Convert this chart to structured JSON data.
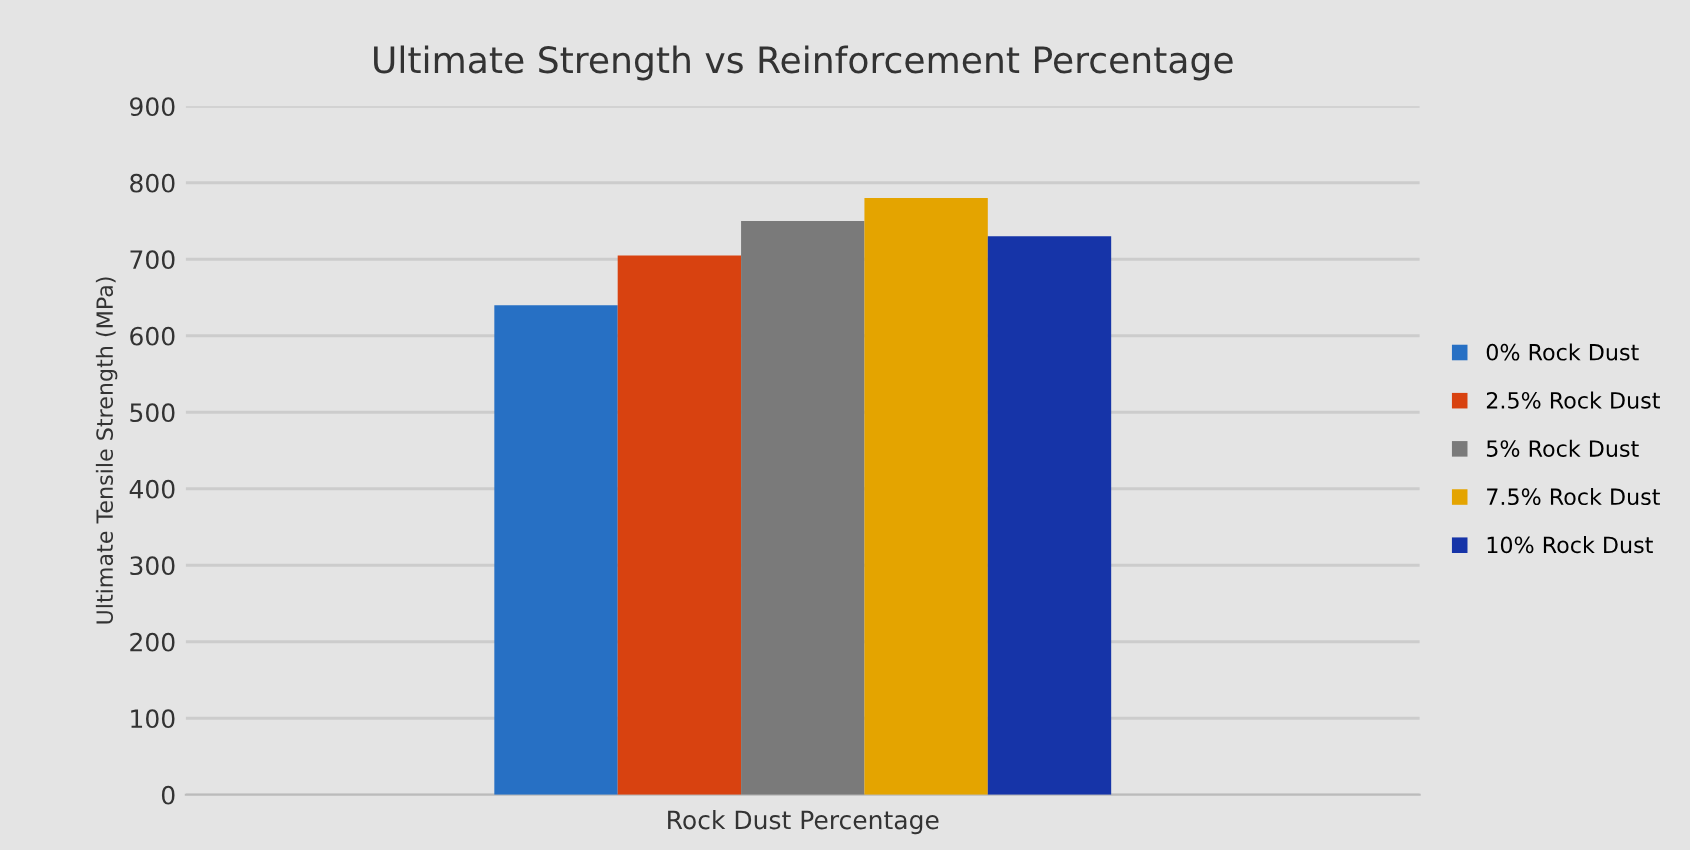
{
  "chart_data": {
    "type": "bar",
    "title": "Ultimate Strength vs Reinforcement Percentage",
    "xlabel": "Rock Dust Percentage",
    "ylabel": "Ultimate Tensile Strength (MPa)",
    "categories": [
      null
    ],
    "series": [
      {
        "name": "0% Rock Dust",
        "color": "#2770c4",
        "values": [
          640
        ]
      },
      {
        "name": "2.5% Rock Dust",
        "color": "#d84210",
        "values": [
          705
        ]
      },
      {
        "name": "5% Rock Dust",
        "color": "#7a7a7a",
        "values": [
          750
        ]
      },
      {
        "name": "7.5% Rock Dust",
        "color": "#e4a400",
        "values": [
          780
        ]
      },
      {
        "name": "10% Rock Dust",
        "color": "#1634a8",
        "values": [
          730
        ]
      }
    ],
    "ylim": [
      0,
      900
    ],
    "yticks": [
      0,
      100,
      200,
      300,
      400,
      500,
      600,
      700,
      800,
      900
    ],
    "grid": "y",
    "legend": "right"
  }
}
